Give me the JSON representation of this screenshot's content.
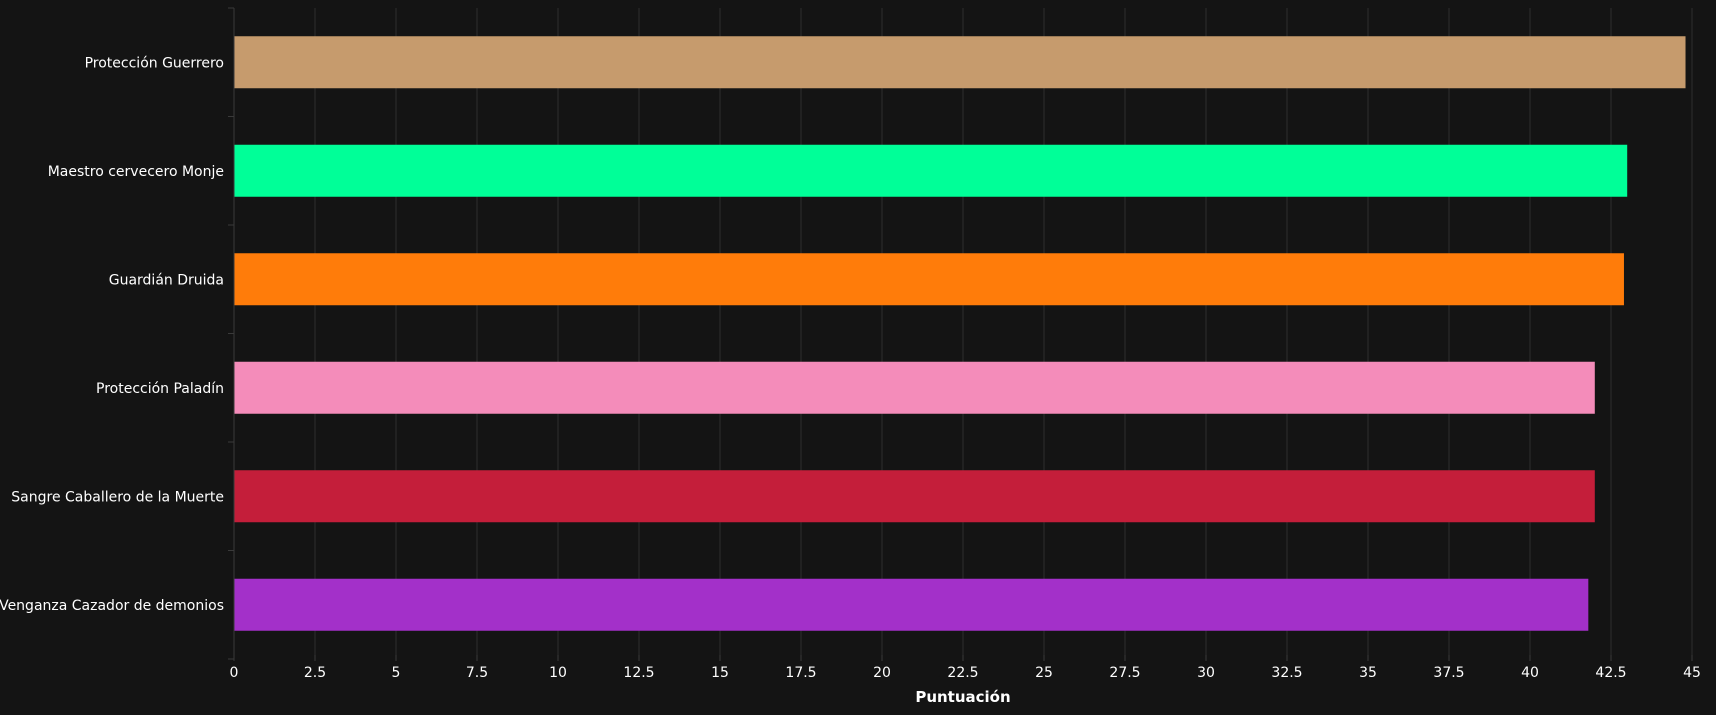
{
  "chart_data": {
    "type": "bar",
    "orientation": "horizontal",
    "title": "",
    "xlabel": "Puntuación",
    "ylabel": "",
    "xlim": [
      0,
      45
    ],
    "x_ticks": [
      "0",
      "2.5",
      "5",
      "7.5",
      "10",
      "12.5",
      "15",
      "17.5",
      "20",
      "22.5",
      "25",
      "27.5",
      "30",
      "32.5",
      "35",
      "37.5",
      "40",
      "42.5",
      "45"
    ],
    "grid": "vertical",
    "legend": "none",
    "categories": [
      "Protección Guerrero",
      "Maestro cervecero Monje",
      "Guardián Druida",
      "Protección Paladín",
      "Sangre Caballero de la Muerte",
      "Venganza Cazador de demonios"
    ],
    "values": [
      44.8,
      43.0,
      42.9,
      42.0,
      42.0,
      41.8
    ],
    "colors": [
      "#C69B6D",
      "#00FF98",
      "#FF7C0A",
      "#F48CBA",
      "#C41E3A",
      "#A330C9"
    ]
  }
}
